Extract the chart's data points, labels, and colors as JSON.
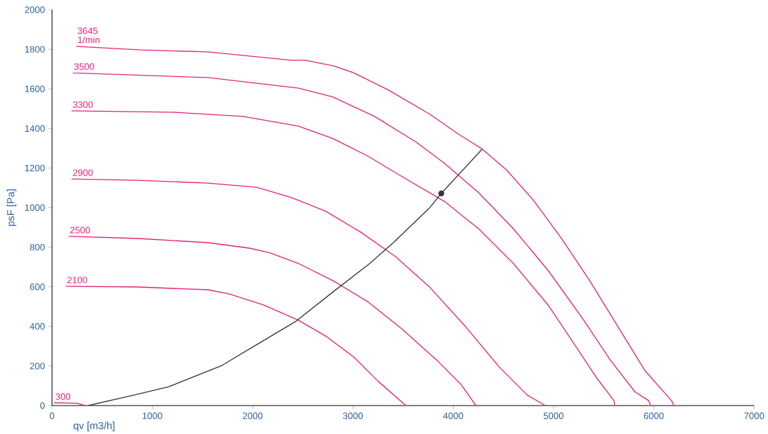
{
  "chart_data": {
    "type": "line",
    "xlabel": "qv [m3/h]",
    "ylabel": "psF [Pa]",
    "xlim": [
      0,
      7000
    ],
    "ylim": [
      0,
      2000
    ],
    "xticks": [
      0,
      1000,
      2000,
      3000,
      4000,
      5000,
      6000,
      7000
    ],
    "yticks": [
      0,
      200,
      400,
      600,
      800,
      1000,
      1200,
      1400,
      1600,
      1800,
      2000
    ],
    "grid": false,
    "marker": "none",
    "line_style": "solid",
    "annotations": [
      "1/min"
    ],
    "series": [
      {
        "name": "3645",
        "color": "#e0217a",
        "x": [
          242,
          865,
          1556,
          2386,
          2525,
          2801,
          3009,
          3355,
          3770,
          4047,
          4289,
          4531,
          4807,
          5084,
          5361,
          5637,
          5914,
          6177,
          6200
        ],
        "values": [
          1815,
          1797,
          1787,
          1745,
          1745,
          1717,
          1681,
          1594,
          1471,
          1373,
          1296,
          1191,
          1033,
          841,
          631,
          403,
          175,
          25,
          0
        ]
      },
      {
        "name": "3500",
        "color": "#e0217a",
        "x": [
          207,
          1556,
          2456,
          2801,
          3216,
          3631,
          3908,
          4254,
          4600,
          4946,
          5292,
          5569,
          5811,
          5948,
          5970
        ],
        "values": [
          1681,
          1657,
          1604,
          1559,
          1461,
          1331,
          1226,
          1075,
          893,
          683,
          438,
          228,
          70,
          25,
          0
        ]
      },
      {
        "name": "3300",
        "color": "#e0217a",
        "x": [
          194,
          1210,
          1902,
          2456,
          2801,
          3147,
          3493,
          3908,
          4254,
          4600,
          4946,
          5223,
          5430,
          5603,
          5610
        ],
        "values": [
          1489,
          1482,
          1461,
          1412,
          1349,
          1261,
          1156,
          1033,
          893,
          718,
          508,
          298,
          140,
          25,
          0
        ]
      },
      {
        "name": "2900",
        "color": "#e0217a",
        "x": [
          194,
          865,
          1556,
          2040,
          2386,
          2732,
          3078,
          3424,
          3770,
          4116,
          4462,
          4738,
          4918
        ],
        "values": [
          1145,
          1138,
          1124,
          1103,
          1051,
          981,
          876,
          753,
          596,
          403,
          193,
          53,
          0
        ]
      },
      {
        "name": "2500",
        "color": "#e0217a",
        "x": [
          166,
          865,
          1556,
          1971,
          2178,
          2456,
          2801,
          3147,
          3493,
          3839,
          4081,
          4226
        ],
        "values": [
          855,
          844,
          823,
          795,
          771,
          718,
          631,
          525,
          385,
          228,
          105,
          0
        ]
      },
      {
        "name": "2100",
        "color": "#e0217a",
        "x": [
          138,
          865,
          1556,
          1764,
          2109,
          2456,
          2732,
          3009,
          3251,
          3528
        ],
        "values": [
          603,
          599,
          585,
          564,
          508,
          431,
          350,
          245,
          123,
          0
        ]
      },
      {
        "name": "300",
        "color": "#e0217a",
        "x": [
          21,
          250,
          330
        ],
        "values": [
          14,
          12,
          0
        ]
      },
      {
        "color": "#333333",
        "x": [
          360,
          816,
          1162,
          1695,
          1971,
          2435,
          2801,
          3168,
          3403,
          3763,
          3881,
          4289
        ],
        "values": [
          0,
          53,
          95,
          203,
          287,
          427,
          574,
          718,
          823,
          998,
          1072,
          1296
        ]
      },
      {
        "type": "scatter",
        "marker": "circle",
        "color": "#333333",
        "x": [
          3881
        ],
        "values": [
          1072
        ]
      }
    ]
  }
}
